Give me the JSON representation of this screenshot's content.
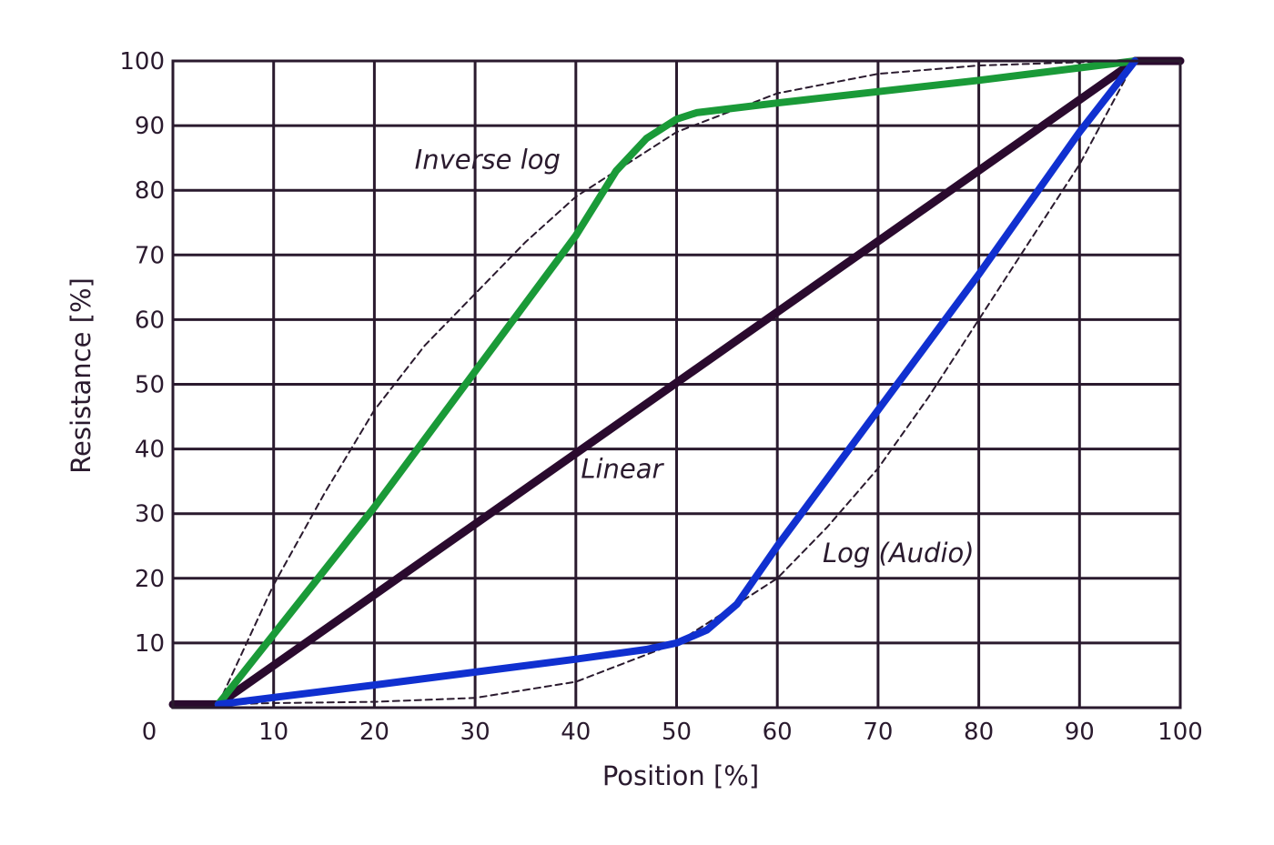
{
  "chart_data": {
    "type": "line",
    "title": "",
    "xlabel": "Position [%]",
    "ylabel": "Resistance [%]",
    "xlim": [
      0,
      100
    ],
    "ylim": [
      0,
      100
    ],
    "x_ticks": [
      10,
      20,
      30,
      40,
      50,
      60,
      70,
      80,
      90,
      100
    ],
    "y_ticks": [
      10,
      20,
      30,
      40,
      50,
      60,
      70,
      80,
      90,
      100
    ],
    "origin_label": "0",
    "grid": true,
    "colors": {
      "grid": "#2a1a2e",
      "linear": "#2a0a2e",
      "inverse_log": "#1a9a38",
      "log_audio": "#1030d0",
      "ideal": "#2a1a2e",
      "text": "#2a1a2e"
    },
    "series": [
      {
        "key": "linear",
        "style": "solid",
        "x": [
          0,
          4.5,
          95.5,
          100
        ],
        "y": [
          0.5,
          0.5,
          100,
          100
        ]
      },
      {
        "key": "inverse_log",
        "style": "solid",
        "x": [
          4.5,
          20,
          30,
          40,
          44,
          47,
          50,
          52,
          60,
          80,
          95.5
        ],
        "y": [
          0.5,
          31,
          52,
          73,
          83,
          88,
          91,
          92,
          93.5,
          97,
          100
        ]
      },
      {
        "key": "log_audio",
        "style": "solid",
        "x": [
          4.5,
          20,
          30,
          40,
          47,
          50,
          53,
          56,
          60,
          70,
          80,
          90,
          95.5
        ],
        "y": [
          0.5,
          3.5,
          5.5,
          7.5,
          9,
          10,
          12,
          16,
          25,
          46,
          67,
          89,
          100
        ]
      },
      {
        "key": "ideal_inverse_log",
        "style": "dashed",
        "x": [
          4.5,
          10,
          15,
          20,
          25,
          30,
          35,
          40,
          50,
          60,
          70,
          80,
          90,
          95.5
        ],
        "y": [
          0.5,
          19,
          33,
          46,
          56,
          64,
          72,
          79,
          89,
          95,
          98,
          99.3,
          99.8,
          100
        ]
      },
      {
        "key": "ideal_log_audio",
        "style": "dashed",
        "x": [
          4.5,
          10,
          20,
          30,
          40,
          50,
          60,
          65,
          70,
          75,
          80,
          85,
          90,
          95.5
        ],
        "y": [
          0.5,
          0.7,
          0.9,
          1.5,
          4,
          10,
          20,
          28,
          37,
          48,
          60,
          72,
          84,
          100
        ]
      }
    ],
    "annotations": [
      {
        "text": "Inverse log",
        "x": 24,
        "y": 83.3
      },
      {
        "text": "Linear",
        "x": 40.5,
        "y": 35.5
      },
      {
        "text": "Log (Audio)",
        "x": 64.5,
        "y": 22.5
      }
    ]
  }
}
